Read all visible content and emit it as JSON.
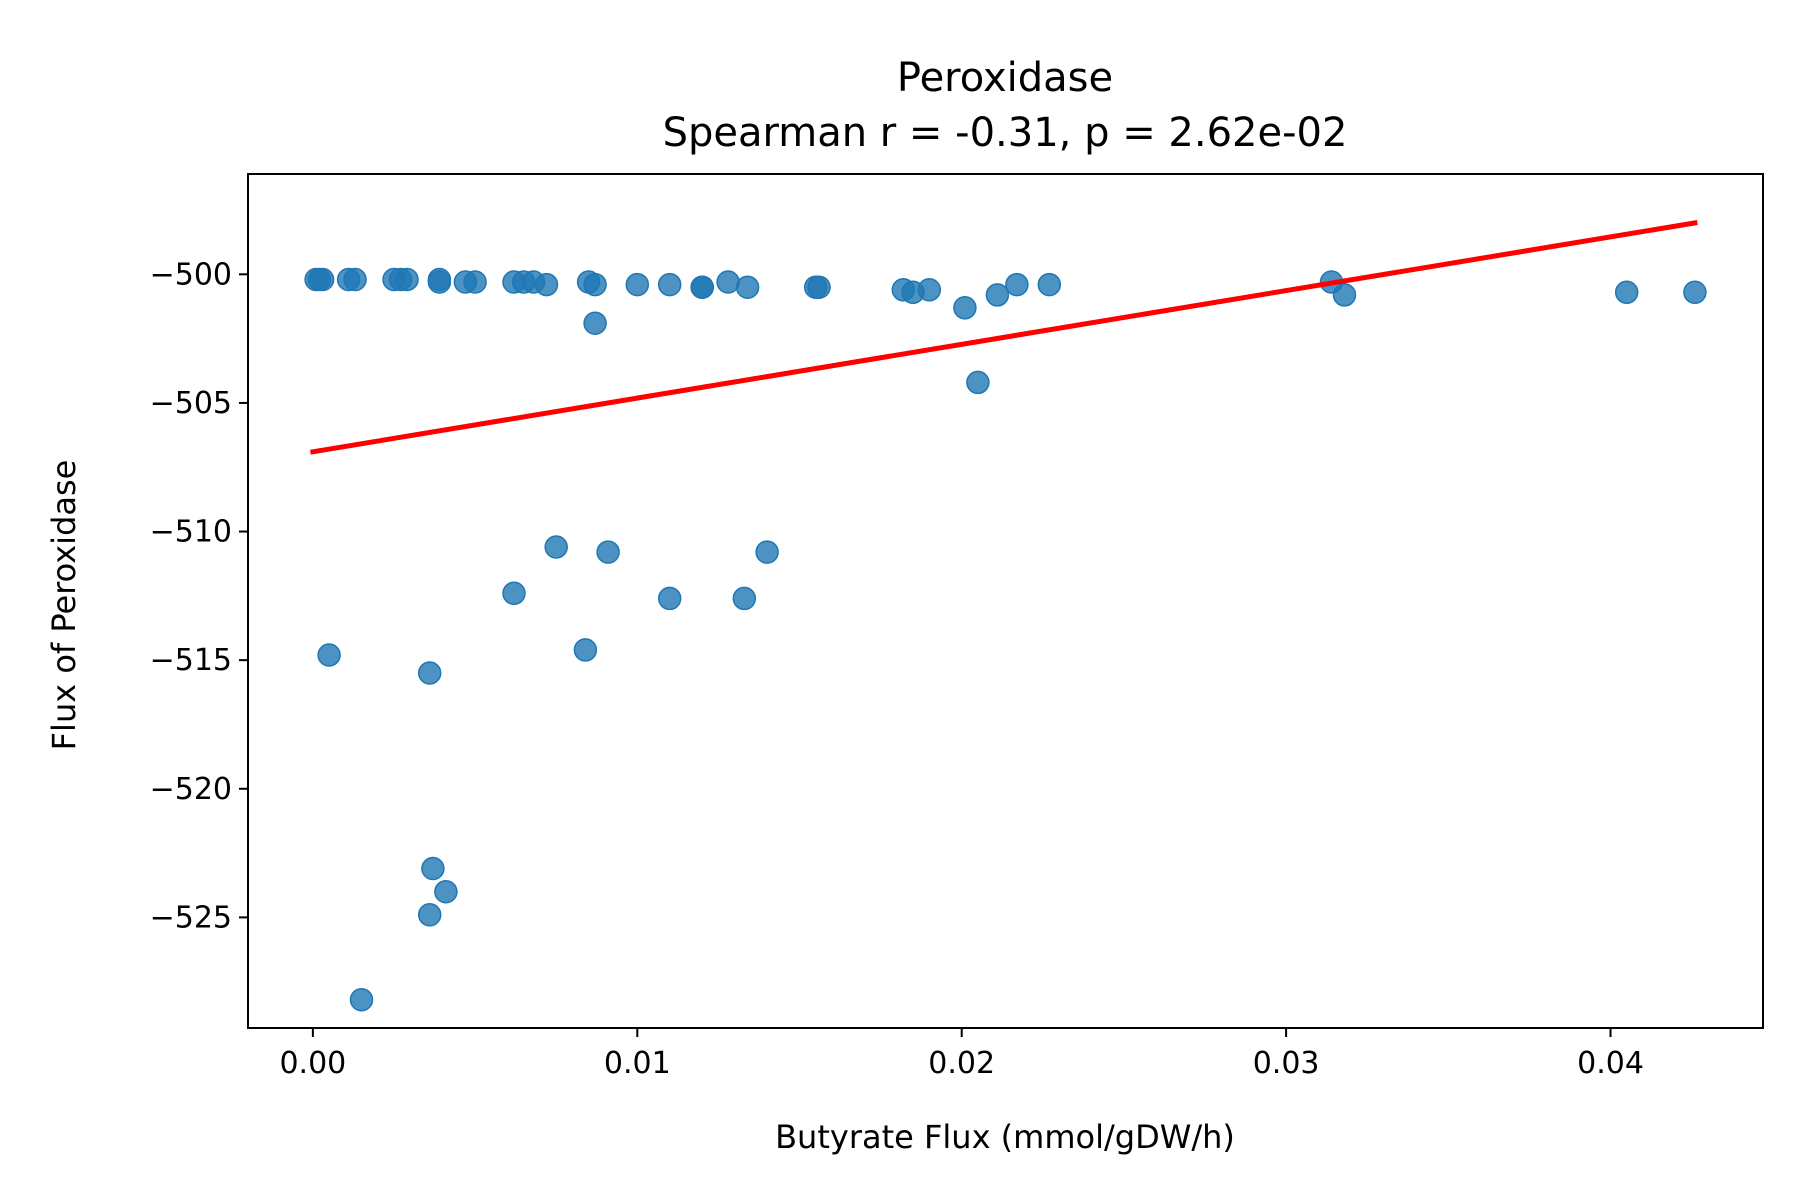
{
  "chart_data": {
    "type": "scatter",
    "title": "Peroxidase",
    "subtitle": "Spearman r = -0.31, p = 2.62e-02",
    "xlabel": "Butyrate Flux (mmol/gDW/h)",
    "ylabel": "Flux of Peroxidase",
    "xlim": [
      -0.002,
      0.0447
    ],
    "ylim": [
      -529.3,
      -496.1
    ],
    "xticks": [
      0.0,
      0.01,
      0.02,
      0.03,
      0.04
    ],
    "xtick_labels": [
      "0.00",
      "0.01",
      "0.02",
      "0.03",
      "0.04"
    ],
    "yticks": [
      -500,
      -505,
      -510,
      -515,
      -520,
      -525
    ],
    "ytick_labels": [
      "−500",
      "−505",
      "−510",
      "−515",
      "−520",
      "−525"
    ],
    "grid": false,
    "point_color": "#1f77b4",
    "fit_color": "#ff0000",
    "points": [
      {
        "x": 0.0001,
        "y": -500.2
      },
      {
        "x": 0.0002,
        "y": -500.2
      },
      {
        "x": 0.0003,
        "y": -500.2
      },
      {
        "x": 0.0011,
        "y": -500.2
      },
      {
        "x": 0.0013,
        "y": -500.2
      },
      {
        "x": 0.0025,
        "y": -500.2
      },
      {
        "x": 0.0027,
        "y": -500.2
      },
      {
        "x": 0.0029,
        "y": -500.2
      },
      {
        "x": 0.0039,
        "y": -500.2
      },
      {
        "x": 0.0039,
        "y": -500.3
      },
      {
        "x": 0.0047,
        "y": -500.3
      },
      {
        "x": 0.005,
        "y": -500.3
      },
      {
        "x": 0.0062,
        "y": -500.3
      },
      {
        "x": 0.0065,
        "y": -500.3
      },
      {
        "x": 0.0068,
        "y": -500.3
      },
      {
        "x": 0.0072,
        "y": -500.4
      },
      {
        "x": 0.0085,
        "y": -500.3
      },
      {
        "x": 0.0087,
        "y": -500.4
      },
      {
        "x": 0.0087,
        "y": -501.9
      },
      {
        "x": 0.01,
        "y": -500.4
      },
      {
        "x": 0.011,
        "y": -500.4
      },
      {
        "x": 0.012,
        "y": -500.5
      },
      {
        "x": 0.012,
        "y": -500.5
      },
      {
        "x": 0.0128,
        "y": -500.3
      },
      {
        "x": 0.0134,
        "y": -500.5
      },
      {
        "x": 0.0155,
        "y": -500.5
      },
      {
        "x": 0.0156,
        "y": -500.5
      },
      {
        "x": 0.0182,
        "y": -500.6
      },
      {
        "x": 0.0185,
        "y": -500.7
      },
      {
        "x": 0.019,
        "y": -500.6
      },
      {
        "x": 0.0201,
        "y": -501.3
      },
      {
        "x": 0.0205,
        "y": -504.2
      },
      {
        "x": 0.0211,
        "y": -500.8
      },
      {
        "x": 0.0217,
        "y": -500.4
      },
      {
        "x": 0.0227,
        "y": -500.4
      },
      {
        "x": 0.0314,
        "y": -500.3
      },
      {
        "x": 0.0318,
        "y": -500.8
      },
      {
        "x": 0.0405,
        "y": -500.7
      },
      {
        "x": 0.0426,
        "y": -500.7
      },
      {
        "x": 0.0005,
        "y": -514.8
      },
      {
        "x": 0.0015,
        "y": -528.2
      },
      {
        "x": 0.0036,
        "y": -515.5
      },
      {
        "x": 0.0037,
        "y": -523.1
      },
      {
        "x": 0.0036,
        "y": -524.9
      },
      {
        "x": 0.0041,
        "y": -524.0
      },
      {
        "x": 0.0062,
        "y": -512.4
      },
      {
        "x": 0.0075,
        "y": -510.6
      },
      {
        "x": 0.0084,
        "y": -514.6
      },
      {
        "x": 0.0091,
        "y": -510.8
      },
      {
        "x": 0.011,
        "y": -512.6
      },
      {
        "x": 0.0133,
        "y": -512.6
      },
      {
        "x": 0.014,
        "y": -510.8
      }
    ],
    "fit_line": {
      "x": [
        0.0,
        0.0426
      ],
      "y": [
        -506.9,
        -498.0
      ]
    }
  }
}
